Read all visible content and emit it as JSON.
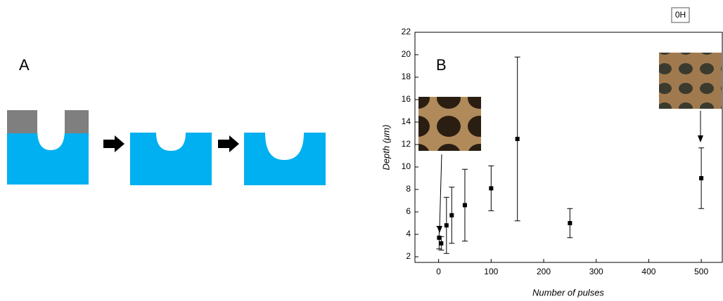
{
  "panel_a": {
    "label": "A"
  },
  "overlay_label": "0H",
  "chart_data": {
    "type": "scatter",
    "panel_label": "B",
    "x_label": "Number of pulses",
    "y_label": "Depth (μm)",
    "x": [
      1,
      5,
      15,
      25,
      50,
      100,
      150,
      250,
      500
    ],
    "values": [
      3.7,
      3.2,
      4.8,
      5.7,
      6.6,
      8.1,
      12.5,
      5.0,
      9.0
    ],
    "errors": [
      1.0,
      0.6,
      2.5,
      2.5,
      3.2,
      2.0,
      7.3,
      1.3,
      2.7
    ],
    "color": "#000000",
    "xlim": [
      -45,
      540
    ],
    "ylim": [
      1.5,
      22
    ],
    "xticks": [
      0,
      100,
      200,
      300,
      400,
      500
    ],
    "yticks": [
      2,
      4,
      6,
      8,
      10,
      12,
      14,
      16,
      18,
      20,
      22
    ]
  }
}
